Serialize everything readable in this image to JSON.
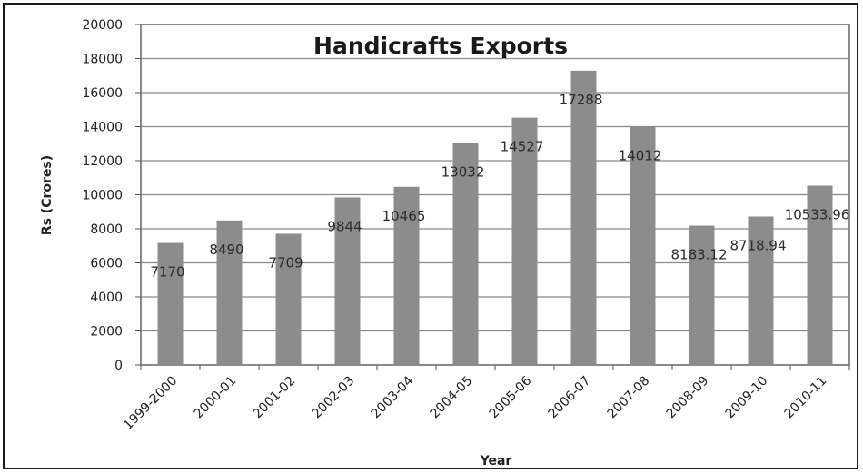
{
  "chart_data": {
    "type": "bar",
    "title": "Handicrafts Exports",
    "xlabel": "Year",
    "ylabel": "Rs (Crores)",
    "ylim": [
      0,
      20000
    ],
    "yticks": [
      "0",
      "2000",
      "4000",
      "6000",
      "8000",
      "10000",
      "12000",
      "14000",
      "16000",
      "18000",
      "20000"
    ],
    "grid": true,
    "categories": [
      "1999-2000",
      "2000-01",
      "2001-02",
      "2002-03",
      "2003-04",
      "2004-05",
      "2005-06",
      "2006-07",
      "2007-08",
      "2008-09",
      "2009-10",
      "2010-11"
    ],
    "values": [
      7170,
      8490,
      7709,
      9844,
      10465,
      13032,
      14527,
      17288,
      14012,
      8183.12,
      8718.94,
      10533.96
    ],
    "data_labels": [
      "7170",
      "8490",
      "7709",
      "9844",
      "10465",
      "13032",
      "14527",
      "17288",
      "14012",
      "8183.12",
      "8718.94",
      "10533.96"
    ],
    "colors": {
      "bar": "#8c8c8c",
      "grid": "#8a8a8a",
      "plot_border": "#8a8a8a"
    }
  }
}
